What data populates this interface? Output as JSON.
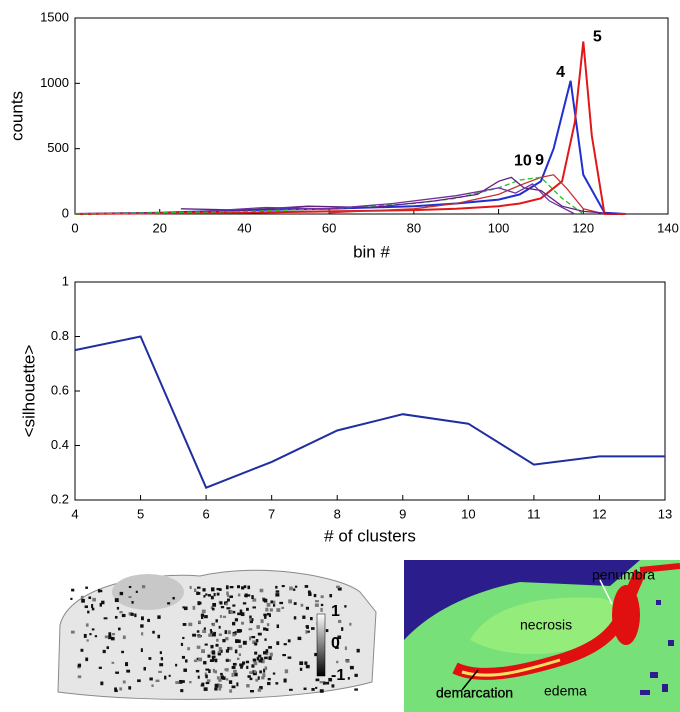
{
  "chart_data": [
    {
      "type": "line",
      "xlabel": "bin #",
      "ylabel": "counts",
      "xlim": [
        0,
        140
      ],
      "ylim": [
        0,
        1500
      ],
      "xticks": [
        0,
        20,
        40,
        60,
        80,
        100,
        120,
        140
      ],
      "yticks": [
        0,
        500,
        1000,
        1500
      ],
      "series": [
        {
          "color": "#1f2fd0",
          "x": [
            0,
            20,
            40,
            60,
            80,
            90,
            100,
            105,
            110,
            113,
            117,
            120,
            125,
            130
          ],
          "values": [
            0,
            10,
            30,
            40,
            60,
            80,
            110,
            150,
            250,
            500,
            1020,
            300,
            10,
            0
          ]
        },
        {
          "color": "#e01818",
          "x": [
            0,
            20,
            40,
            60,
            80,
            90,
            100,
            105,
            110,
            115,
            118,
            120,
            122,
            125,
            130
          ],
          "values": [
            0,
            5,
            10,
            20,
            30,
            40,
            60,
            80,
            120,
            250,
            700,
            1320,
            600,
            0,
            0
          ]
        },
        {
          "color": "#c83030",
          "x": [
            60,
            80,
            90,
            100,
            105,
            110,
            113,
            116,
            120,
            125
          ],
          "values": [
            10,
            40,
            80,
            150,
            220,
            280,
            300,
            200,
            40,
            0
          ]
        },
        {
          "color": "#20c020",
          "dashed": true,
          "x": [
            0,
            20,
            40,
            60,
            80,
            90,
            100,
            105,
            110,
            115,
            120
          ],
          "values": [
            0,
            10,
            20,
            40,
            80,
            120,
            200,
            260,
            280,
            120,
            0
          ]
        },
        {
          "color": "#602080",
          "x": [
            25,
            40,
            55,
            70,
            85,
            95,
            100,
            103,
            106,
            110,
            115,
            120,
            128
          ],
          "values": [
            40,
            30,
            60,
            50,
            100,
            150,
            250,
            280,
            200,
            180,
            60,
            20,
            0
          ]
        },
        {
          "color": "#7030a0",
          "x": [
            30,
            45,
            60,
            75,
            90,
            100,
            104,
            108,
            112,
            118
          ],
          "values": [
            20,
            50,
            40,
            80,
            140,
            200,
            160,
            230,
            100,
            0
          ]
        }
      ],
      "annotations": [
        "4",
        "5",
        "9",
        "10"
      ]
    },
    {
      "type": "line",
      "xlabel": "# of clusters",
      "ylabel": "<silhouette>",
      "xlim": [
        4,
        13
      ],
      "ylim": [
        0.2,
        1
      ],
      "xticks": [
        4,
        5,
        6,
        7,
        8,
        9,
        10,
        11,
        12,
        13
      ],
      "yticks": [
        0.2,
        0.4,
        0.6,
        0.8,
        1
      ],
      "x": [
        4,
        5,
        6,
        7,
        8,
        9,
        10,
        11,
        12,
        13
      ],
      "values": [
        0.75,
        0.8,
        0.245,
        0.34,
        0.455,
        0.515,
        0.48,
        0.33,
        0.36,
        0.36
      ],
      "color": "#1f2fa0"
    }
  ],
  "images": {
    "left": {
      "colorbar_ticks": [
        1,
        0,
        -1
      ]
    },
    "right": {
      "labels": [
        "penumbra",
        "necrosis",
        "demarcation",
        "edema"
      ]
    }
  }
}
